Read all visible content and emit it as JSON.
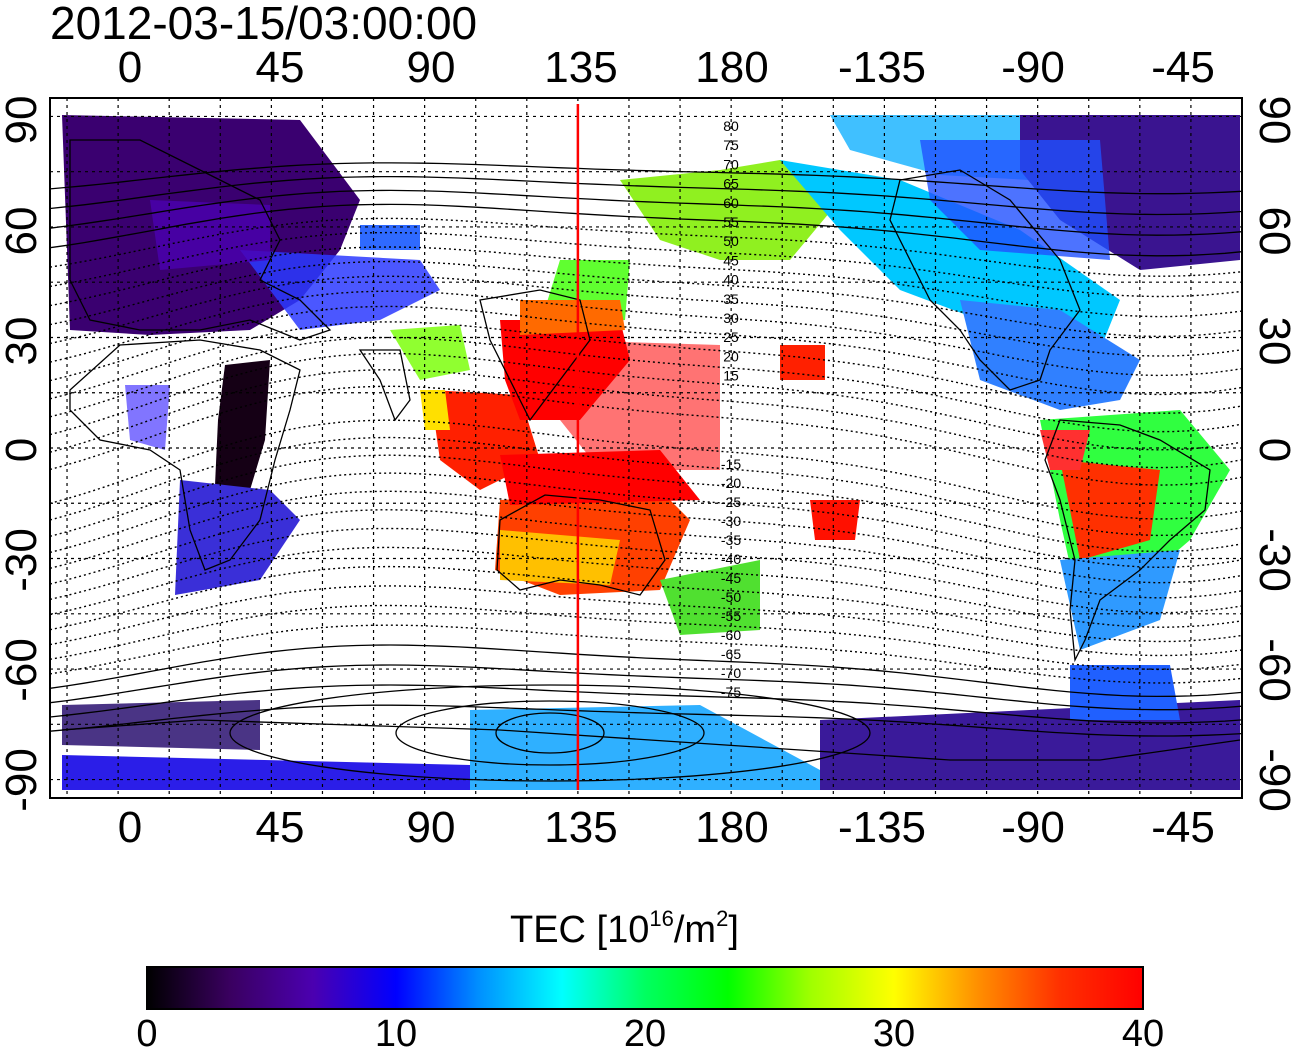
{
  "timestamp": "2012-03-15/03:00:00",
  "axes": {
    "top_ticks": [
      "0",
      "45",
      "90",
      "135",
      "180",
      "-135",
      "-90",
      "-45"
    ],
    "bottom_ticks": [
      "0",
      "45",
      "90",
      "135",
      "180",
      "-135",
      "-90",
      "-45"
    ],
    "left_ticks": [
      "90",
      "60",
      "30",
      "0",
      "-30",
      "-60",
      "-90"
    ],
    "right_ticks": [
      "90",
      "60",
      "30",
      "0",
      "-30",
      "-60",
      "-90"
    ],
    "lon_range": [
      -20,
      330
    ],
    "lat_range": [
      -95,
      95
    ],
    "grid": "dotted, 15 degree spacing"
  },
  "marker_longitude": 135,
  "marker_color": "#ff0000",
  "contour_labels": {
    "north": [
      "80",
      "75",
      "70",
      "65",
      "60",
      "55",
      "50",
      "45",
      "40",
      "35",
      "30",
      "25",
      "20",
      "15"
    ],
    "south": [
      "-15",
      "-20",
      "-25",
      "-30",
      "-35",
      "-40",
      "-45",
      "-50",
      "-55",
      "-60",
      "-65",
      "-70",
      "-75"
    ]
  },
  "colorbar": {
    "title_prefix": "TEC  [10",
    "title_exp1": "16",
    "title_mid": "/m",
    "title_exp2": "2",
    "title_suffix": "]",
    "ticks": [
      "0",
      "10",
      "20",
      "30",
      "40"
    ],
    "min": 0,
    "max": 40,
    "colors": [
      "#000000",
      "#3a0060",
      "#4b00b0",
      "#0000ff",
      "#0090ff",
      "#00ffff",
      "#00ff60",
      "#00ff00",
      "#a0ff00",
      "#ffff00",
      "#ff9000",
      "#ff3000",
      "#ff0000"
    ]
  }
}
